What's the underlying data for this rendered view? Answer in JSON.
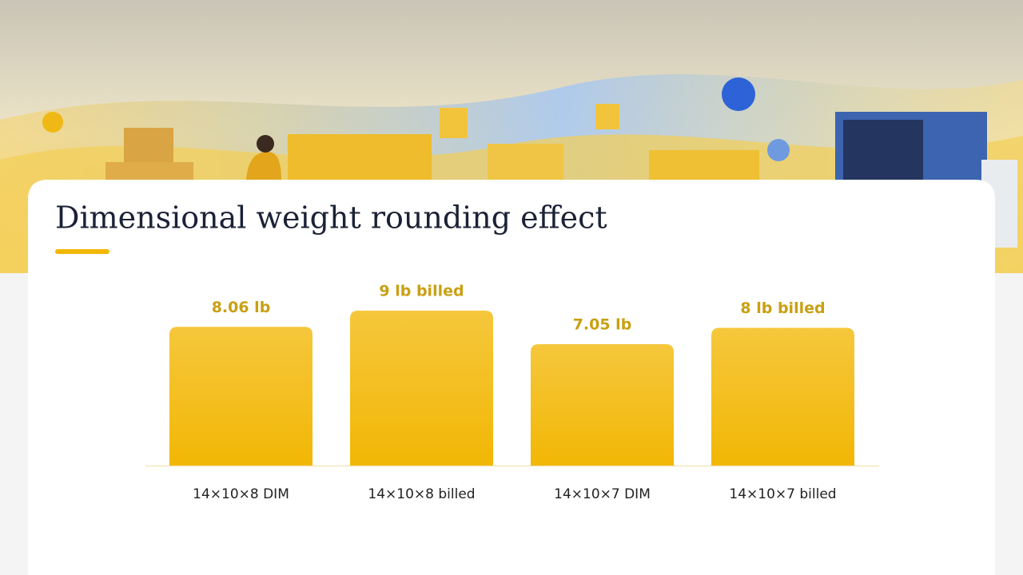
{
  "chart_data": {
    "type": "bar",
    "title": "Dimensional weight rounding effect",
    "categories": [
      "14×10×8 DIM",
      "14×10×8 billed",
      "14×10×7 DIM",
      "14×10×7 billed"
    ],
    "values": [
      8.06,
      9,
      7.05,
      8
    ],
    "value_labels": [
      "8.06 lb",
      "9 lb billed",
      "7.05 lb",
      "8 lb billed"
    ],
    "color": "#f3bb10"
  }
}
